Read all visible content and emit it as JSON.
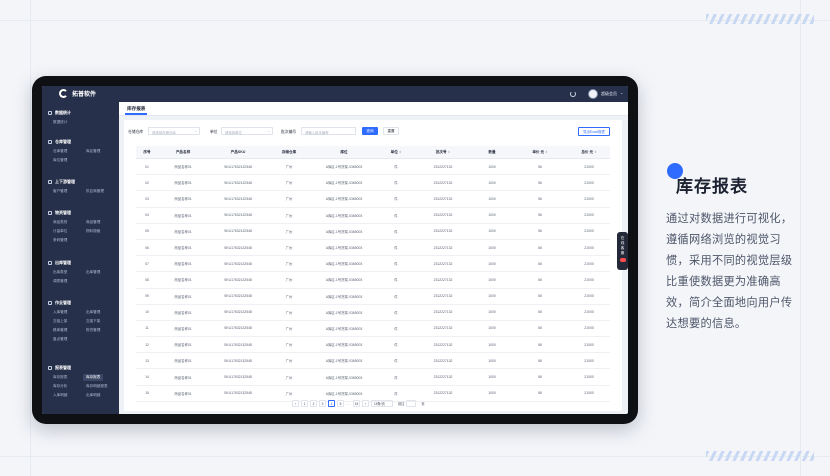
{
  "app": {
    "name": "拓普软件",
    "username": "超级会员"
  },
  "sidebar": {
    "sections": [
      {
        "title": "数据统计",
        "items": [
          "数据统计"
        ]
      },
      {
        "title": "仓库管理",
        "items": [
          "仓库管理",
          "库区管理",
          "库位管理"
        ]
      },
      {
        "title": "上下游管理",
        "items": [
          "客户管理",
          "供应商管理"
        ]
      },
      {
        "title": "物资管理",
        "items": [
          "商品类别",
          "商品管理",
          "计量单位",
          "物料规格",
          "条码管理"
        ]
      },
      {
        "title": "出库管理",
        "items": [
          "出库类型",
          "出库管理",
          "调拨管理"
        ]
      },
      {
        "title": "作业管理",
        "items": [
          "入库管理",
          "出库管理",
          "交接上架",
          "交接下架",
          "移库管理",
          "拣货管理",
          "盘点管理"
        ]
      },
      {
        "title": "报表管理",
        "items": [
          "库存报表",
          "库存报表",
          "库存分析",
          "库存明细报表",
          "入库明细",
          "出库明细"
        ]
      }
    ]
  },
  "page": {
    "tab_title": "库存报表",
    "filters": {
      "warehouse_label": "仓储仓库",
      "warehouse_placeholder": "请选择存储仓库",
      "unit_label": "单位",
      "unit_placeholder": "请选择单位",
      "batch_label": "批次编号",
      "batch_placeholder": "请输入批次编号",
      "query_button": "查询",
      "reset_button": "重置",
      "export_button": "导出Excel报表"
    },
    "table": {
      "columns": [
        "序号",
        "产品名称",
        "产品SKU",
        "存储仓库",
        "库位",
        "单位",
        "批次号",
        "数量",
        "单价 元",
        "总价 元"
      ],
      "rows": [
        [
          "01",
          "商品名称01",
          "SKU17632132548",
          "广州",
          "A库区-1号货架-0365003",
          "件",
          "2312227132",
          "1000",
          "56",
          "21000"
        ],
        [
          "02",
          "商品名称01",
          "SKU17632132548",
          "广州",
          "A库区-1号货架-0365003",
          "件",
          "2312227132",
          "1000",
          "56",
          "21000"
        ],
        [
          "03",
          "商品名称01",
          "SKU17632132548",
          "广州",
          "A库区-1号货架-0365003",
          "件",
          "2312227132",
          "1000",
          "56",
          "21000"
        ],
        [
          "04",
          "商品名称01",
          "SKU17632132548",
          "广州",
          "A库区-1号货架-0365003",
          "件",
          "2312227132",
          "1000",
          "56",
          "21000"
        ],
        [
          "05",
          "商品名称01",
          "SKU17632132548",
          "广州",
          "A库区-1号货架-0365003",
          "件",
          "2312227132",
          "1000",
          "56",
          "21000"
        ],
        [
          "06",
          "商品名称01",
          "SKU17632132548",
          "广州",
          "A库区-1号货架-0365003",
          "件",
          "2312227132",
          "1000",
          "56",
          "21000"
        ],
        [
          "07",
          "商品名称01",
          "SKU17632132548",
          "广州",
          "A库区-1号货架-0365003",
          "件",
          "2312227132",
          "1000",
          "56",
          "21000"
        ],
        [
          "08",
          "商品名称01",
          "SKU17632132548",
          "广州",
          "A库区-1号货架-0365003",
          "件",
          "2312227132",
          "1000",
          "56",
          "21000"
        ],
        [
          "09",
          "商品名称01",
          "SKU17632132548",
          "广州",
          "A库区-1号货架-0365003",
          "件",
          "2312227132",
          "1000",
          "56",
          "21000"
        ],
        [
          "10",
          "商品名称01",
          "SKU17632132548",
          "广州",
          "A库区-1号货架-0365003",
          "件",
          "2312227132",
          "1000",
          "56",
          "21000"
        ],
        [
          "11",
          "商品名称01",
          "SKU17632132548",
          "广州",
          "A库区-1号货架-0365003",
          "件",
          "2312227132",
          "1000",
          "56",
          "21000"
        ],
        [
          "12",
          "商品名称01",
          "SKU17632132548",
          "广州",
          "A库区-1号货架-0365003",
          "件",
          "2312227132",
          "1000",
          "56",
          "21000"
        ],
        [
          "13",
          "商品名称01",
          "SKU17632132548",
          "广州",
          "A库区-1号货架-0365003",
          "件",
          "2312227132",
          "1000",
          "56",
          "21000"
        ],
        [
          "14",
          "商品名称01",
          "SKU17632132548",
          "广州",
          "A库区-1号货架-0365003",
          "件",
          "2312227132",
          "1000",
          "56",
          "21000"
        ],
        [
          "15",
          "商品名称01",
          "SKU17632132548",
          "广州",
          "A库区-1号货架-0365003",
          "件",
          "2312227132",
          "1000",
          "56",
          "21000"
        ]
      ]
    },
    "pagination": {
      "pages": [
        "1",
        "2",
        "3",
        "4",
        "5",
        "…",
        "15"
      ],
      "current_page": "4",
      "page_size": "15条/页",
      "jump_label": "前往",
      "page_suffix": "页"
    }
  },
  "floating_toolbar": {
    "label": "在线客服"
  },
  "promo": {
    "title": "库存报表",
    "description": "通过对数据进行可视化，遵循网络浏览的视觉习惯，采用不同的视觉层级比重使数据更为准确高效，简介全面地向用户传达想要的信息。"
  },
  "colors": {
    "accent": "#2f6bff",
    "sidebar": "#26304a",
    "device_frame": "#0f1013",
    "background": "#f3f5f9"
  }
}
